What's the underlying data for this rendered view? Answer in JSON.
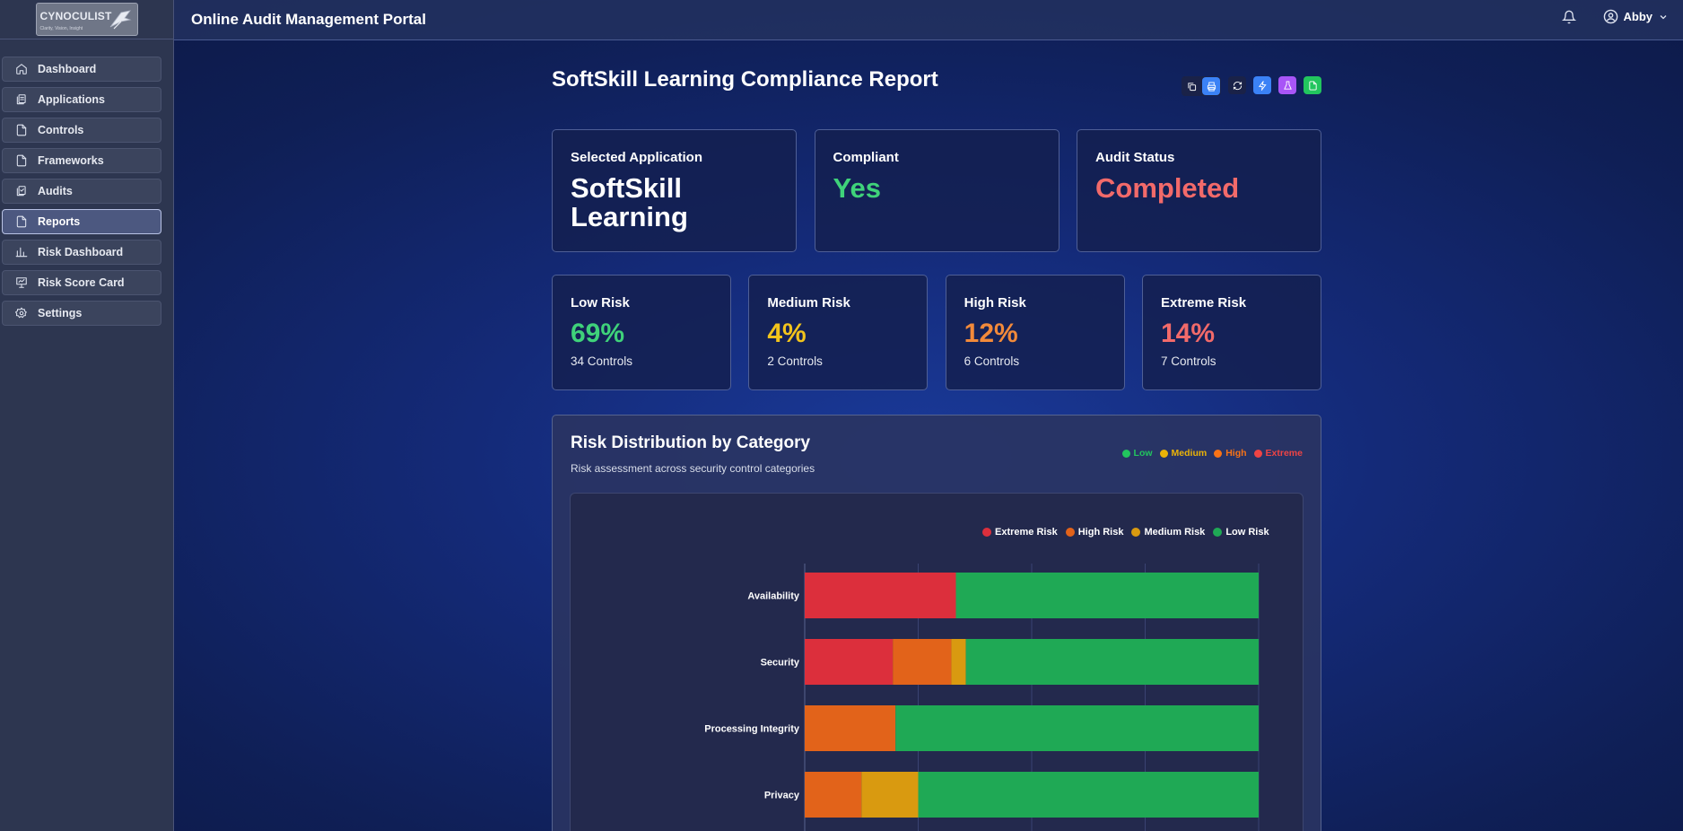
{
  "app": {
    "logo_text": "CYNOCULIST",
    "logo_sub": "Clarity, Vision, Insight",
    "header_title": "Online Audit Management Portal",
    "user_name": "Abby"
  },
  "sidebar": {
    "items": [
      {
        "label": "Dashboard",
        "icon": "home-icon",
        "active": false
      },
      {
        "label": "Applications",
        "icon": "applications-icon",
        "active": false
      },
      {
        "label": "Controls",
        "icon": "document-icon",
        "active": false
      },
      {
        "label": "Frameworks",
        "icon": "document-icon",
        "active": false
      },
      {
        "label": "Audits",
        "icon": "audits-icon",
        "active": false
      },
      {
        "label": "Reports",
        "icon": "document-icon",
        "active": true
      },
      {
        "label": "Risk Dashboard",
        "icon": "bar-chart-icon",
        "active": false
      },
      {
        "label": "Risk Score Card",
        "icon": "presentation-icon",
        "active": false
      },
      {
        "label": "Settings",
        "icon": "gear-icon",
        "active": false
      }
    ]
  },
  "report": {
    "title": "SoftSkill Learning Compliance Report",
    "toolbar": [
      {
        "icon": "copy-icon",
        "color": "#1a2248"
      },
      {
        "icon": "printer-icon",
        "color": "#3b82f6"
      },
      {
        "icon": "refresh-icon",
        "color": "#1a2248"
      },
      {
        "icon": "lightning-icon",
        "color": "#3b82f6"
      },
      {
        "icon": "flask-icon",
        "color": "#a855f7"
      },
      {
        "icon": "file-icon",
        "color": "#22c55e"
      }
    ]
  },
  "summary": {
    "selected_app_label": "Selected Application",
    "selected_app_value": "SoftSkill Learning",
    "compliant_label": "Compliant",
    "compliant_value": "Yes",
    "audit_status_label": "Audit Status",
    "audit_status_value": "Completed"
  },
  "risk_cards": [
    {
      "label": "Low Risk",
      "percent": "69%",
      "count": "34 Controls",
      "color": "#3fd27a"
    },
    {
      "label": "Medium Risk",
      "percent": "4%",
      "count": "2 Controls",
      "color": "#f2c41c"
    },
    {
      "label": "High Risk",
      "percent": "12%",
      "count": "6 Controls",
      "color": "#f28a3a"
    },
    {
      "label": "Extreme Risk",
      "percent": "14%",
      "count": "7 Controls",
      "color": "#f26a6a"
    }
  ],
  "distribution": {
    "title": "Risk Distribution by Category",
    "subtitle": "Risk assessment across security control categories",
    "legend": [
      {
        "label": "Low",
        "color": "#22c55e"
      },
      {
        "label": "Medium",
        "color": "#eab308"
      },
      {
        "label": "High",
        "color": "#f97316"
      },
      {
        "label": "Extreme",
        "color": "#ef4444"
      }
    ]
  },
  "chart_data": {
    "type": "bar",
    "orientation": "horizontal",
    "stacked": true,
    "categories": [
      "Availability",
      "Security",
      "Processing Integrity",
      "Privacy"
    ],
    "series": [
      {
        "name": "Extreme Risk",
        "color": "#dc2f3c",
        "values": [
          33.3,
          19.4,
          0,
          0
        ]
      },
      {
        "name": "High Risk",
        "color": "#e2631a",
        "values": [
          0,
          12.9,
          20,
          12.5
        ]
      },
      {
        "name": "Medium Risk",
        "color": "#d99a10",
        "values": [
          0,
          3.2,
          0,
          12.5
        ]
      },
      {
        "name": "Low Risk",
        "color": "#1fa955",
        "values": [
          66.7,
          64.5,
          80,
          75
        ]
      }
    ],
    "xlim": [
      0,
      100
    ],
    "legend_position": "top-right"
  }
}
